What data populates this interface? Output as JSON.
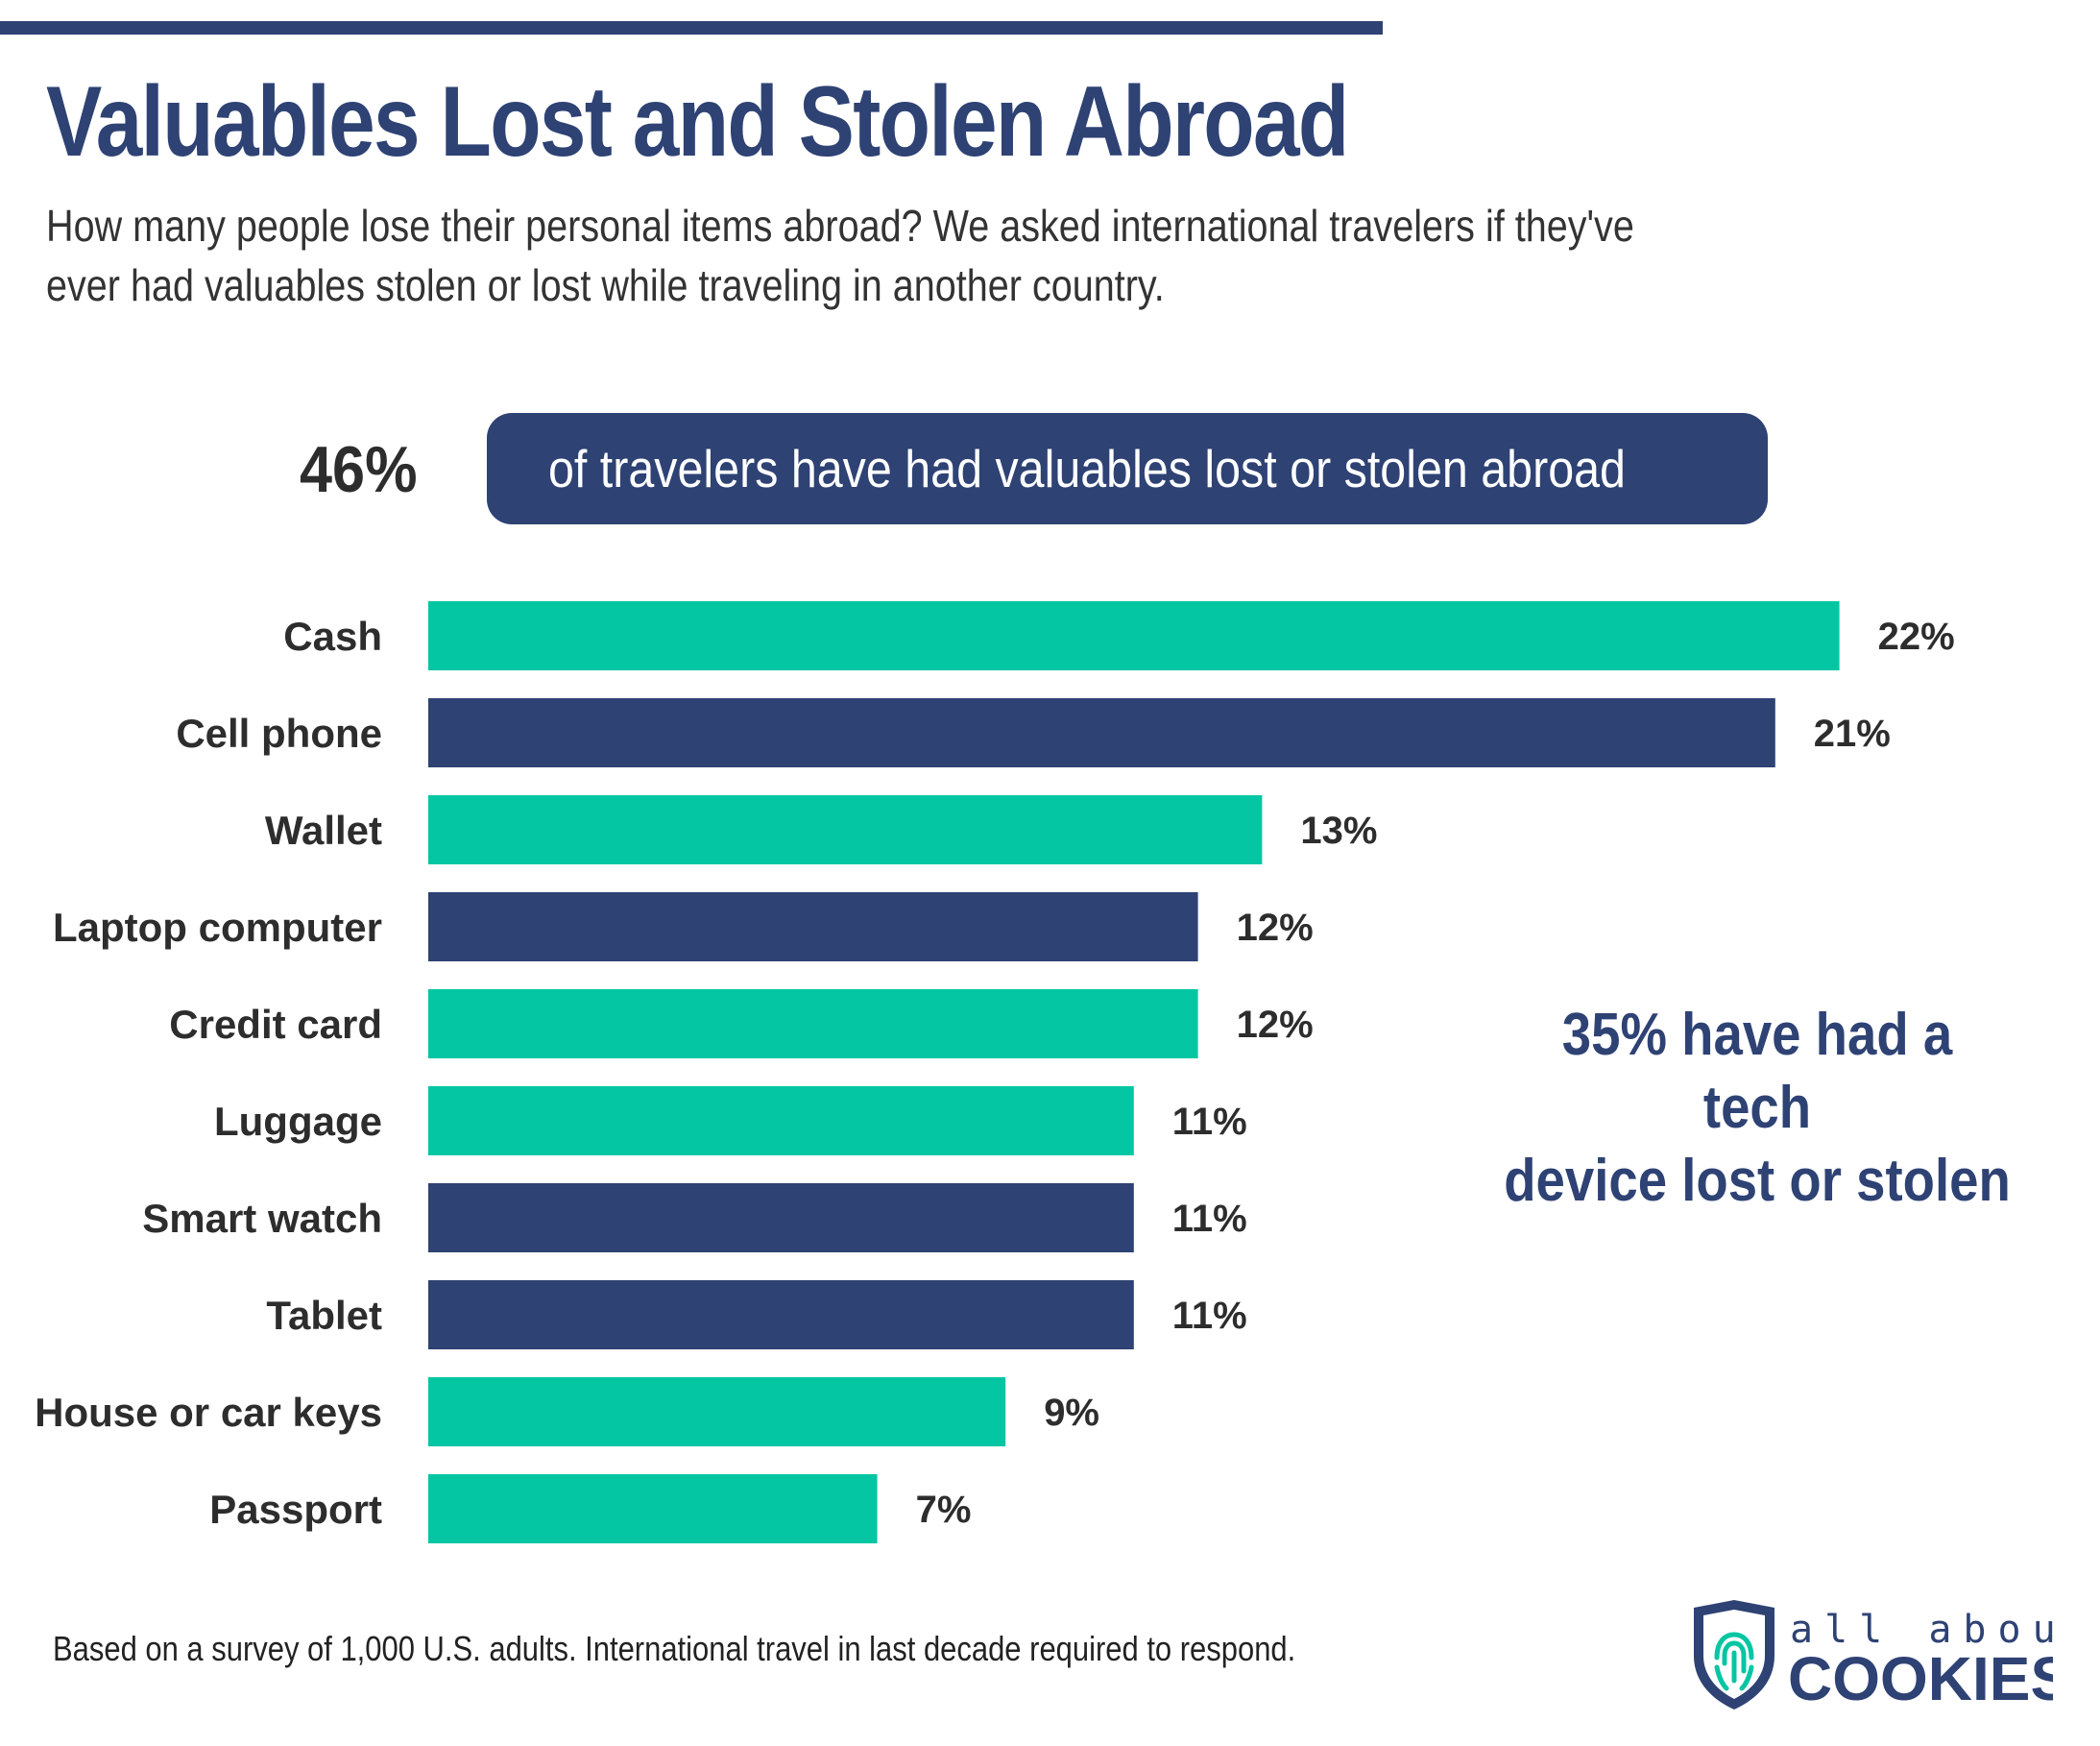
{
  "header": {
    "title": "Valuables Lost and Stolen Abroad",
    "subtitle": "How many people lose their personal items abroad? We asked international travelers if they've ever had valuables stolen or lost while traveling in another country."
  },
  "highlight": {
    "percent": "46%",
    "text": "of travelers have had valuables lost or stolen abroad"
  },
  "callout": {
    "line1": "35% have had a tech",
    "line2": "device lost or stolen"
  },
  "footnote": "Based on a survey of 1,000 U.S. adults. International travel in last decade required to respond.",
  "logo": {
    "line1": "all about",
    "line2": "COOKIES",
    "icon": "fingerprint-shield-icon"
  },
  "colors": {
    "teal": "#05c6a3",
    "navy": "#2e4274",
    "text_dark": "#2d2d2d"
  },
  "chart_data": {
    "type": "bar",
    "orientation": "horizontal",
    "categories": [
      "Cash",
      "Cell phone",
      "Wallet",
      "Laptop computer",
      "Credit card",
      "Luggage",
      "Smart watch",
      "Tablet",
      "House or car keys",
      "Passport"
    ],
    "values": [
      22,
      21,
      13,
      12,
      12,
      11,
      11,
      11,
      9,
      7
    ],
    "labels": [
      "22%",
      "21%",
      "13%",
      "12%",
      "12%",
      "11%",
      "11%",
      "11%",
      "9%",
      "7%"
    ],
    "groups": [
      "other",
      "tech",
      "other",
      "tech",
      "other",
      "other",
      "tech",
      "tech",
      "other",
      "other"
    ],
    "group_colors": {
      "other": "#05c6a3",
      "tech": "#2e4274"
    },
    "unit": "%",
    "grid": false,
    "axes_visible": false
  }
}
